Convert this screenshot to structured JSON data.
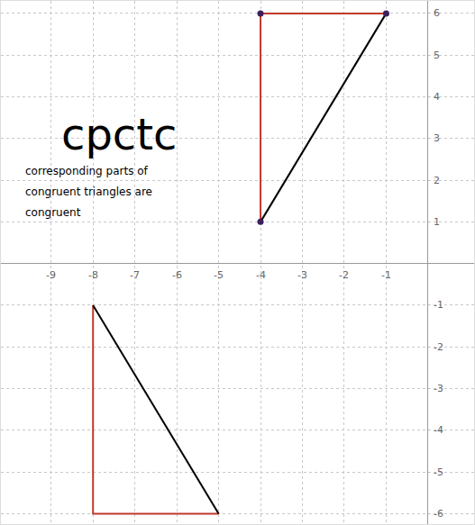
{
  "chart_data": {
    "type": "line",
    "annotations": [
      "cpctc",
      "corresponding parts of",
      "congruent triangles are",
      "congruent"
    ],
    "series": [
      {
        "color": "#c0392b",
        "x": [
          -4,
          -4,
          -1,
          null,
          -8,
          -8,
          -5
        ],
        "values": [
          1,
          6,
          6,
          null,
          -1,
          -6,
          -6
        ]
      },
      {
        "color": "#000000",
        "x": [
          -1,
          -4,
          null,
          -5,
          -8
        ],
        "values": [
          6,
          1,
          null,
          -6,
          -1
        ]
      },
      {
        "type": "scatter",
        "marker": "circle",
        "color": "#3d1f5c",
        "x": [
          -4,
          -4,
          -1
        ],
        "values": [
          1,
          6,
          6
        ]
      }
    ],
    "xlim": [
      -10.2,
      1.1
    ],
    "ylim": [
      -6.25,
      6.3
    ],
    "xticks": [
      -9,
      -8,
      -7,
      -6,
      -5,
      -4,
      -3,
      -2,
      -1
    ],
    "yticks": [
      -6,
      -5,
      -4,
      -3,
      -2,
      -1,
      1,
      2,
      3,
      4,
      5,
      6
    ],
    "grid": true
  }
}
